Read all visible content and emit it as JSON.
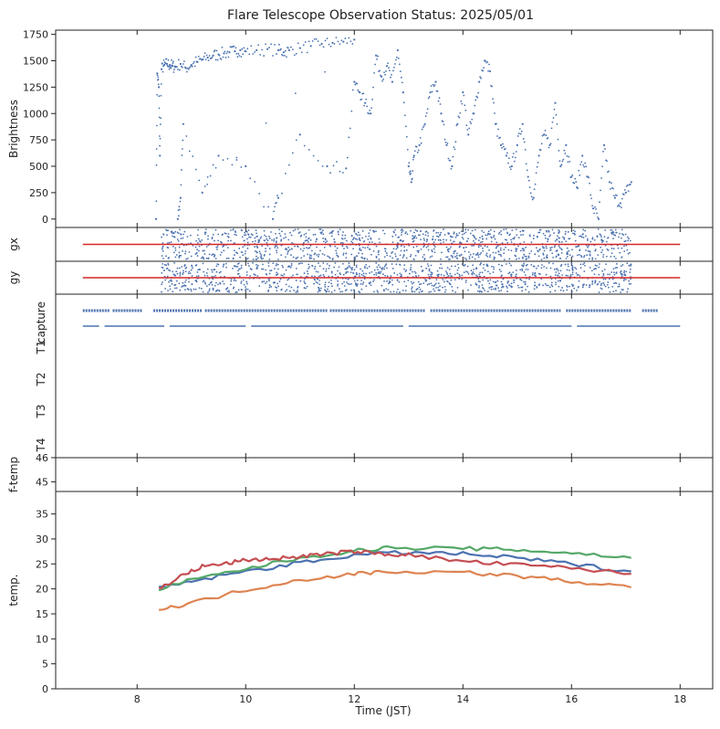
{
  "chart_data": {
    "type": "scatter",
    "title": "Flare Telescope Observation Status: 2025/05/01",
    "xlabel": "Time (JST)",
    "xlim": [
      6.5,
      18.6
    ],
    "x_ticks": [
      8,
      10,
      12,
      14,
      16,
      18
    ],
    "colors": {
      "blue": "#4c72b0",
      "orange": "#dd8452",
      "green": "#55a868",
      "red": "#c44e52"
    },
    "panels": [
      {
        "id": "brightness",
        "ylabel": "Brightness",
        "ylim": [
          -80,
          1790
        ],
        "y_ticks": [
          0,
          250,
          500,
          750,
          1000,
          1250,
          1500,
          1750
        ],
        "series": [
          {
            "color": "#4c72b0",
            "kind": "points",
            "points": [
              [
                8.35,
                0
              ],
              [
                8.37,
                1380
              ],
              [
                8.4,
                1250
              ],
              [
                8.42,
                600
              ],
              [
                8.45,
                1420
              ],
              [
                8.5,
                1460
              ],
              [
                8.55,
                1470
              ],
              [
                8.6,
                1460
              ],
              [
                8.65,
                1450
              ],
              [
                8.7,
                1440
              ],
              [
                8.8,
                1470
              ],
              [
                8.9,
                1430
              ],
              [
                9.0,
                1460
              ],
              [
                9.1,
                1490
              ],
              [
                9.2,
                1510
              ],
              [
                9.3,
                1530
              ],
              [
                9.4,
                1550
              ],
              [
                9.5,
                1560
              ],
              [
                9.6,
                1570
              ],
              [
                9.7,
                1580
              ],
              [
                9.8,
                1590
              ],
              [
                9.9,
                1600
              ],
              [
                10.0,
                1590
              ],
              [
                10.2,
                1600
              ],
              [
                10.4,
                1610
              ],
              [
                10.6,
                1600
              ],
              [
                10.7,
                1580
              ],
              [
                10.8,
                1600
              ],
              [
                11.0,
                1620
              ],
              [
                11.2,
                1640
              ],
              [
                11.4,
                1660
              ],
              [
                11.6,
                1670
              ],
              [
                11.8,
                1680
              ],
              [
                12.0,
                1700
              ],
              [
                8.75,
                0
              ],
              [
                8.8,
                200
              ],
              [
                8.85,
                900
              ],
              [
                9.2,
                250
              ],
              [
                9.5,
                600
              ],
              [
                10.0,
                500
              ],
              [
                10.5,
                0
              ],
              [
                10.6,
                200
              ],
              [
                11.0,
                800
              ],
              [
                11.5,
                500
              ],
              [
                11.85,
                480
              ],
              [
                12.0,
                1300
              ],
              [
                12.1,
                1200
              ],
              [
                12.2,
                1100
              ],
              [
                12.3,
                1000
              ],
              [
                12.4,
                1550
              ],
              [
                12.5,
                1350
              ],
              [
                12.6,
                1450
              ],
              [
                12.7,
                1300
              ],
              [
                12.8,
                1600
              ],
              [
                12.9,
                1200
              ],
              [
                13.0,
                500
              ],
              [
                13.05,
                350
              ],
              [
                13.1,
                600
              ],
              [
                13.2,
                700
              ],
              [
                13.3,
                900
              ],
              [
                13.4,
                1200
              ],
              [
                13.5,
                1300
              ],
              [
                13.6,
                1000
              ],
              [
                13.7,
                700
              ],
              [
                13.8,
                500
              ],
              [
                13.9,
                900
              ],
              [
                14.0,
                1200
              ],
              [
                14.1,
                800
              ],
              [
                14.2,
                1000
              ],
              [
                14.3,
                1300
              ],
              [
                14.4,
                1500
              ],
              [
                14.5,
                1400
              ],
              [
                14.6,
                900
              ],
              [
                14.7,
                700
              ],
              [
                14.8,
                600
              ],
              [
                14.9,
                500
              ],
              [
                15.0,
                700
              ],
              [
                15.1,
                900
              ],
              [
                15.2,
                400
              ],
              [
                15.3,
                200
              ],
              [
                15.4,
                600
              ],
              [
                15.5,
                800
              ],
              [
                15.6,
                700
              ],
              [
                15.7,
                1100
              ],
              [
                15.8,
                500
              ],
              [
                15.9,
                700
              ],
              [
                16.0,
                400
              ],
              [
                16.1,
                300
              ],
              [
                16.2,
                600
              ],
              [
                16.3,
                400
              ],
              [
                16.4,
                100
              ],
              [
                16.5,
                0
              ],
              [
                16.6,
                700
              ],
              [
                16.7,
                350
              ],
              [
                16.8,
                200
              ],
              [
                16.9,
                150
              ],
              [
                17.0,
                250
              ],
              [
                17.1,
                350
              ]
            ]
          }
        ]
      },
      {
        "id": "gx",
        "ylabel": "gx",
        "ylim": [
          -1,
          1
        ],
        "series": [
          {
            "color": "#4c72b0",
            "kind": "band",
            "x_range": [
              8.45,
              17.1
            ],
            "half_width": 0.9
          },
          {
            "color": "#d62728",
            "kind": "hline",
            "y": 0,
            "x_range": [
              7.0,
              18.0
            ]
          }
        ]
      },
      {
        "id": "gy",
        "ylabel": "gy",
        "ylim": [
          -1,
          1
        ],
        "series": [
          {
            "color": "#4c72b0",
            "kind": "band",
            "x_range": [
              8.45,
              17.1
            ],
            "half_width": 0.9
          },
          {
            "color": "#d62728",
            "kind": "hline",
            "y": 0,
            "x_range": [
              7.0,
              18.0
            ]
          }
        ]
      },
      {
        "id": "status",
        "ylabels": [
          "capture",
          "T1",
          "T2",
          "T3",
          "T4"
        ],
        "series": [
          {
            "color": "#4c72b0",
            "kind": "segments",
            "row": "capture",
            "ranges": [
              [
                7.0,
                7.5
              ],
              [
                7.55,
                8.1
              ],
              [
                8.3,
                9.2
              ],
              [
                9.25,
                11.5
              ],
              [
                11.55,
                13.3
              ],
              [
                13.4,
                15.8
              ],
              [
                15.9,
                17.1
              ],
              [
                17.3,
                17.6
              ]
            ]
          },
          {
            "color": "#4c72b0",
            "kind": "segments",
            "row": "between",
            "ranges": [
              [
                7.0,
                7.3
              ],
              [
                7.4,
                8.5
              ],
              [
                8.6,
                10.0
              ],
              [
                10.1,
                12.9
              ],
              [
                13.0,
                16.0
              ],
              [
                16.1,
                18.0
              ]
            ]
          }
        ]
      },
      {
        "id": "ftemp",
        "ylabel": "f-temp",
        "ylim": [
          44.6,
          46
        ],
        "y_ticks": [
          45,
          46
        ]
      },
      {
        "id": "temp",
        "ylabel": "temp.",
        "ylim": [
          0,
          39.5
        ],
        "y_ticks": [
          0,
          5,
          10,
          15,
          20,
          25,
          30,
          35
        ],
        "series": [
          {
            "color": "#4c72b0",
            "kind": "line",
            "points": [
              [
                8.4,
                20.0
              ],
              [
                9.0,
                21.5
              ],
              [
                10.0,
                23.5
              ],
              [
                11.0,
                25.2
              ],
              [
                12.0,
                26.8
              ],
              [
                13.0,
                27.3
              ],
              [
                14.0,
                27.0
              ],
              [
                15.0,
                26.2
              ],
              [
                16.0,
                25.0
              ],
              [
                17.1,
                23.5
              ]
            ]
          },
          {
            "color": "#dd8452",
            "kind": "line",
            "points": [
              [
                8.4,
                15.8
              ],
              [
                9.0,
                17.2
              ],
              [
                10.0,
                19.8
              ],
              [
                11.0,
                21.8
              ],
              [
                12.0,
                23.0
              ],
              [
                12.6,
                23.5
              ],
              [
                14.0,
                23.3
              ],
              [
                15.0,
                22.6
              ],
              [
                16.0,
                21.5
              ],
              [
                17.1,
                20.3
              ]
            ]
          },
          {
            "color": "#55a868",
            "kind": "line",
            "points": [
              [
                8.4,
                20.0
              ],
              [
                9.0,
                21.8
              ],
              [
                10.0,
                24.0
              ],
              [
                11.0,
                26.2
              ],
              [
                12.0,
                27.6
              ],
              [
                12.6,
                28.2
              ],
              [
                14.0,
                28.1
              ],
              [
                15.0,
                27.8
              ],
              [
                16.0,
                27.2
              ],
              [
                17.1,
                26.2
              ]
            ]
          },
          {
            "color": "#c44e52",
            "kind": "line",
            "points": [
              [
                8.4,
                20.0
              ],
              [
                8.8,
                22.5
              ],
              [
                9.2,
                24.5
              ],
              [
                9.6,
                25.0
              ],
              [
                10.0,
                25.8
              ],
              [
                10.5,
                26.0
              ],
              [
                11.0,
                26.5
              ],
              [
                11.5,
                27.0
              ],
              [
                12.0,
                27.5
              ],
              [
                12.5,
                27.0
              ],
              [
                13.0,
                26.8
              ],
              [
                14.0,
                25.5
              ],
              [
                15.0,
                24.8
              ],
              [
                16.0,
                24.2
              ],
              [
                17.1,
                23.0
              ]
            ]
          }
        ]
      }
    ]
  }
}
